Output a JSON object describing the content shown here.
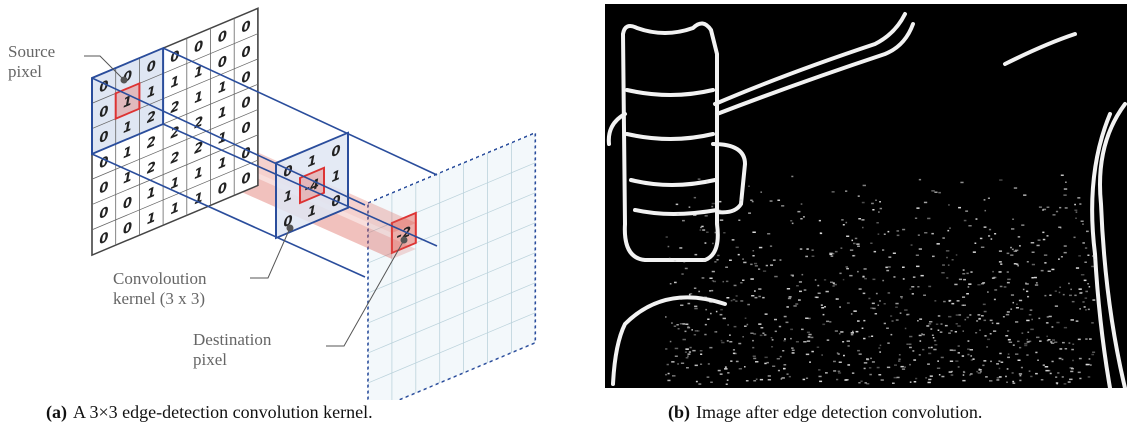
{
  "left_figure": {
    "source_grid": [
      [
        0,
        0,
        0,
        0,
        0,
        0,
        0
      ],
      [
        0,
        1,
        1,
        1,
        1,
        0,
        0
      ],
      [
        0,
        1,
        2,
        2,
        1,
        1,
        0
      ],
      [
        0,
        1,
        2,
        2,
        2,
        1,
        0
      ],
      [
        0,
        1,
        2,
        2,
        2,
        1,
        0
      ],
      [
        0,
        0,
        1,
        1,
        1,
        1,
        0
      ],
      [
        0,
        0,
        1,
        1,
        1,
        0,
        0
      ]
    ],
    "kernel": [
      [
        0,
        1,
        0
      ],
      [
        1,
        -4,
        1
      ],
      [
        0,
        1,
        0
      ]
    ],
    "destination_value": -2,
    "labels": {
      "source_pixel": [
        "Source",
        "pixel"
      ],
      "kernel": [
        "Convoloution",
        "kernel (3 x 3)"
      ],
      "destination_pixel": [
        "Destination",
        "pixel"
      ]
    }
  },
  "captions": [
    {
      "label": "(a)",
      "text": "A 3×3 edge-detection convolution kernel."
    },
    {
      "label": "(b)",
      "text": "Image after edge detection convolution."
    }
  ]
}
